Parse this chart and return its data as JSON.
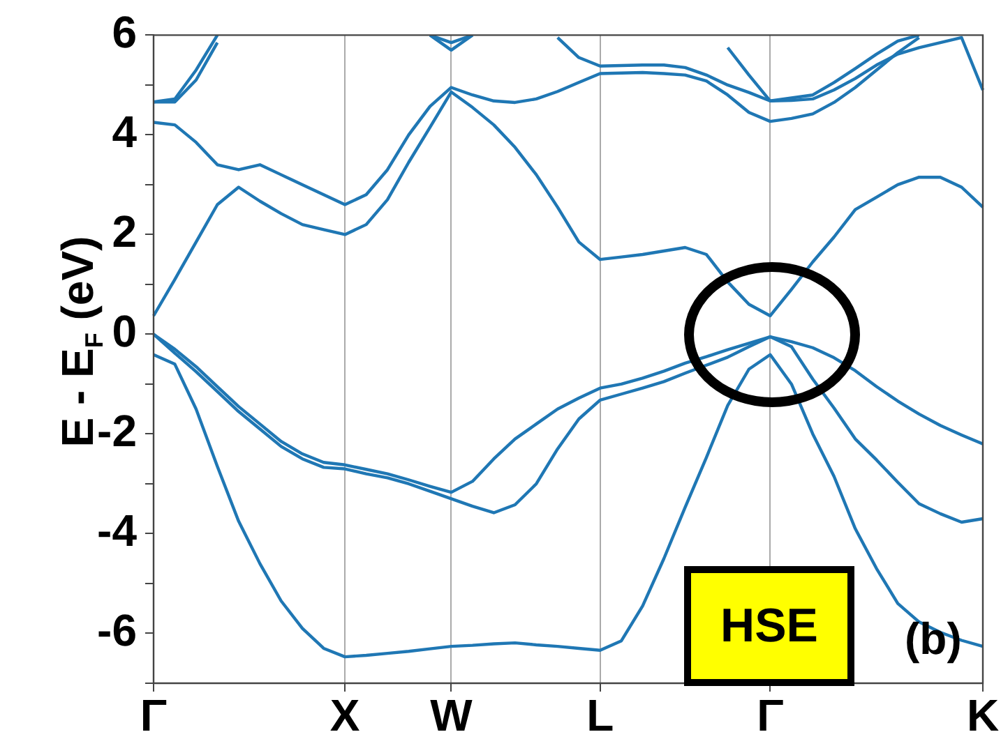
{
  "chart_data": {
    "type": "line",
    "ylabel": "E - E$_{F}$ (eV)",
    "annotations": [
      "HSE",
      "(b)"
    ],
    "grid": "x",
    "categories": [
      "Γ",
      null,
      null,
      null,
      null,
      null,
      null,
      null,
      null,
      "X",
      null,
      null,
      null,
      null,
      "W",
      null,
      null,
      null,
      null,
      null,
      null,
      "L",
      null,
      null,
      null,
      null,
      null,
      null,
      null,
      "Γ",
      null,
      null,
      null,
      null,
      null,
      null,
      null,
      null,
      null,
      "K"
    ],
    "ylim": [
      -7,
      6
    ],
    "yticks": [
      {
        "value": -7,
        "label": null
      },
      -6,
      {
        "value": -5,
        "label": null
      },
      -4,
      {
        "value": -3,
        "label": null
      },
      -2,
      {
        "value": -1,
        "label": null
      },
      0,
      {
        "value": 1,
        "label": null
      },
      2,
      {
        "value": 3,
        "label": null
      },
      4,
      {
        "value": 5,
        "label": null
      },
      6
    ],
    "series": [
      {
        "color": "#1f77b4",
        "values": [
          -0.41,
          -0.6,
          -1.5,
          -2.65,
          -3.75,
          -4.6,
          -5.35,
          -5.9,
          -6.3,
          -6.47,
          -6.44,
          -6.4,
          -6.36,
          -6.31,
          -6.26,
          -6.24,
          -6.21,
          -6.19,
          -6.23,
          -6.26,
          -6.3,
          -6.34,
          -6.15,
          -5.45,
          -4.5,
          -3.47,
          -2.47,
          -1.43,
          -0.7,
          -0.41,
          -1.0,
          -2.0,
          -2.85,
          -3.9,
          -4.7,
          -5.4,
          -5.77,
          -5.98,
          -6.14,
          -6.26
        ]
      },
      {
        "color": "#1f77b4",
        "values": [
          0,
          -0.3,
          -0.65,
          -1.05,
          -1.45,
          -1.8,
          -2.15,
          -2.4,
          -2.57,
          -2.62,
          -2.71,
          -2.8,
          -2.92,
          -3.05,
          -3.17,
          -2.95,
          -2.5,
          -2.1,
          -1.8,
          -1.5,
          -1.28,
          -1.08,
          -1.0,
          -0.88,
          -0.74,
          -0.58,
          -0.45,
          -0.31,
          -0.18,
          -0.05,
          -0.15,
          -0.27,
          -0.47,
          -0.73,
          -1.05,
          -1.34,
          -1.6,
          -1.83,
          -2.02,
          -2.2
        ]
      },
      {
        "color": "#1f77b4",
        "values": [
          0,
          -0.38,
          -0.75,
          -1.15,
          -1.55,
          -1.9,
          -2.25,
          -2.5,
          -2.67,
          -2.7,
          -2.8,
          -2.88,
          -3.0,
          -3.15,
          -3.3,
          -3.45,
          -3.58,
          -3.42,
          -3.0,
          -2.3,
          -1.7,
          -1.32,
          -1.2,
          -1.08,
          -0.95,
          -0.78,
          -0.62,
          -0.46,
          -0.25,
          -0.05,
          -0.25,
          -0.9,
          -1.48,
          -2.1,
          -2.52,
          -2.97,
          -3.4,
          -3.6,
          -3.77,
          -3.7
        ]
      },
      {
        "color": "#1f77b4",
        "values": [
          0.37,
          1.1,
          1.85,
          2.6,
          2.95,
          2.67,
          2.42,
          2.2,
          2.1,
          2.0,
          2.2,
          2.7,
          3.45,
          4.15,
          4.86,
          4.55,
          4.2,
          3.75,
          3.2,
          2.55,
          1.85,
          1.5,
          1.55,
          1.6,
          1.67,
          1.74,
          1.6,
          1.05,
          0.6,
          0.37,
          0.9,
          1.45,
          1.95,
          2.5,
          2.75,
          3.0,
          3.15,
          3.15,
          2.95,
          2.55
        ]
      },
      {
        "color": "#1f77b4",
        "values": [
          4.25,
          4.2,
          3.85,
          3.4,
          3.3,
          3.4,
          3.2,
          3.0,
          2.8,
          2.6,
          2.8,
          3.3,
          4.0,
          4.57,
          4.95,
          4.8,
          4.68,
          4.65,
          4.72,
          4.87,
          5.05,
          5.23,
          5.24,
          5.25,
          5.23,
          5.2,
          5.08,
          4.8,
          4.45,
          4.27,
          4.33,
          4.42,
          4.65,
          4.95,
          5.3,
          5.65,
          5.95,
          null,
          null,
          null
        ]
      },
      {
        "color": "#1f77b4",
        "values": [
          null,
          null,
          null,
          null,
          null,
          null,
          null,
          null,
          null,
          null,
          null,
          null,
          null,
          null,
          null,
          null,
          null,
          null,
          null,
          5.95,
          5.55,
          5.38,
          5.39,
          5.4,
          5.4,
          5.35,
          5.2,
          5.0,
          4.85,
          4.68,
          4.74,
          4.8,
          5.05,
          5.33,
          5.62,
          5.88,
          6.0,
          null,
          null,
          null
        ]
      },
      {
        "color": "#1f77b4",
        "values": [
          null,
          null,
          null,
          null,
          null,
          null,
          null,
          null,
          null,
          null,
          null,
          null,
          null,
          null,
          null,
          null,
          null,
          null,
          null,
          null,
          null,
          null,
          null,
          null,
          null,
          null,
          null,
          5.75,
          5.2,
          4.68,
          4.69,
          4.72,
          4.9,
          5.13,
          5.4,
          5.62,
          5.75,
          5.85,
          5.95,
          4.9
        ]
      },
      {
        "color": "#1f77b4",
        "values": [
          4.66,
          4.72,
          5.3,
          6.0,
          null,
          null,
          null,
          null,
          null,
          null,
          null,
          null,
          null,
          null,
          null,
          null,
          null,
          null,
          null,
          null,
          null,
          null,
          null,
          null,
          null,
          null,
          null,
          null,
          null,
          null,
          null,
          null,
          null,
          null,
          null,
          null,
          null,
          null,
          null,
          null
        ]
      },
      {
        "color": "#1f77b4",
        "values": [
          4.66,
          4.66,
          5.1,
          5.85,
          null,
          null,
          null,
          null,
          null,
          null,
          null,
          null,
          null,
          null,
          null,
          null,
          null,
          null,
          null,
          null,
          null,
          null,
          null,
          null,
          null,
          null,
          null,
          null,
          null,
          null,
          null,
          null,
          null,
          null,
          null,
          null,
          null,
          null,
          null,
          null
        ]
      },
      {
        "color": "#1f77b4",
        "values": [
          null,
          null,
          null,
          null,
          null,
          null,
          null,
          null,
          null,
          null,
          null,
          null,
          null,
          6.0,
          5.7,
          6.0,
          null,
          null,
          null,
          null,
          null,
          null,
          null,
          null,
          null,
          null,
          null,
          null,
          null,
          null,
          null,
          null,
          null,
          null,
          null,
          null,
          null,
          null,
          null,
          null
        ]
      },
      {
        "color": "#1f77b4",
        "values": [
          null,
          null,
          null,
          null,
          null,
          null,
          null,
          null,
          null,
          null,
          null,
          null,
          null,
          6.0,
          5.85,
          6.0,
          null,
          null,
          null,
          null,
          null,
          null,
          null,
          null,
          null,
          null,
          null,
          null,
          null,
          null,
          null,
          null,
          null,
          null,
          null,
          null,
          null,
          null,
          null,
          null
        ]
      }
    ]
  }
}
